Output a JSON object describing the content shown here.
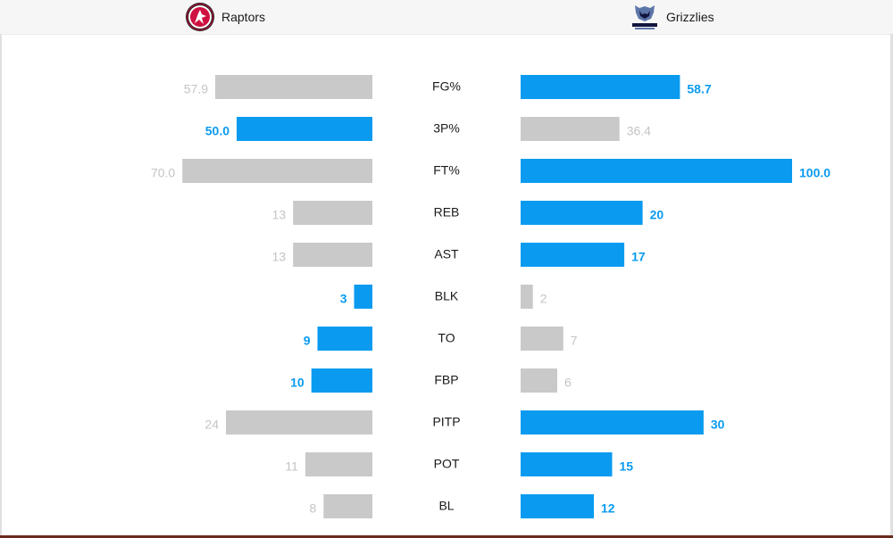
{
  "teams": {
    "away": {
      "name": "Raptors",
      "logo_icon": "raptors-logo-icon"
    },
    "home": {
      "name": "Grizzlies",
      "logo_icon": "grizzlies-logo-icon"
    }
  },
  "colors": {
    "highlight": "#0a9bf0",
    "muted": "#c9c9c9",
    "muted_text": "#c4c4c4"
  },
  "chart_data": {
    "type": "bar",
    "orientation": "horizontal-diverging",
    "categories": [
      "FG%",
      "3P%",
      "FT%",
      "REB",
      "AST",
      "BLK",
      "TO",
      "FBP",
      "PITP",
      "POT",
      "BL"
    ],
    "series": [
      {
        "name": "Raptors",
        "values": [
          57.9,
          50.0,
          70.0,
          13,
          13,
          3,
          9,
          10,
          24,
          11,
          8
        ],
        "labels": [
          "57.9",
          "50.0",
          "70.0",
          "13",
          "13",
          "3",
          "9",
          "10",
          "24",
          "11",
          "8"
        ],
        "highlight": [
          false,
          true,
          false,
          false,
          false,
          true,
          true,
          true,
          false,
          false,
          false
        ]
      },
      {
        "name": "Grizzlies",
        "values": [
          58.7,
          36.4,
          100.0,
          20,
          17,
          2,
          7,
          6,
          30,
          15,
          12
        ],
        "labels": [
          "58.7",
          "36.4",
          "100.0",
          "20",
          "17",
          "2",
          "7",
          "6",
          "30",
          "15",
          "12"
        ],
        "highlight": [
          true,
          false,
          true,
          true,
          true,
          false,
          false,
          false,
          true,
          true,
          true
        ]
      }
    ],
    "scale": {
      "percent_max": 100,
      "count_max": 44.5
    },
    "grid": false,
    "legend": "none"
  }
}
